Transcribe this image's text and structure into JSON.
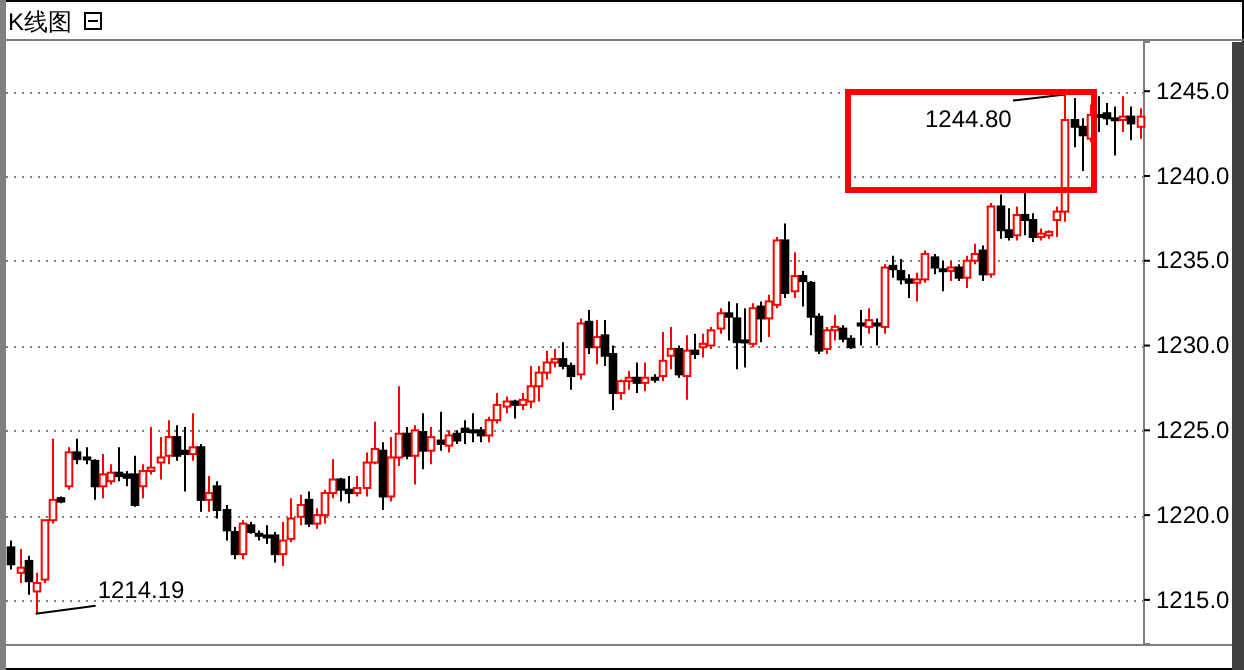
{
  "chart_data": {
    "type": "candlestick",
    "title": "K线图",
    "categories": [
      null,
      null,
      null,
      null,
      null,
      null,
      null,
      null,
      null,
      null,
      null,
      null,
      null,
      null,
      null,
      null,
      null,
      null,
      null,
      null,
      null,
      null,
      null,
      null,
      null,
      null,
      null,
      null,
      null,
      null,
      null,
      null,
      null,
      null,
      null,
      null,
      null,
      null,
      null,
      null,
      null,
      null,
      null,
      null,
      null,
      null,
      null,
      null,
      null,
      null,
      null,
      null,
      null,
      null,
      null,
      null,
      null,
      null,
      null,
      null,
      null,
      null,
      null,
      null,
      null,
      null,
      null,
      null,
      null,
      null,
      null,
      null,
      null,
      null,
      null,
      null,
      null,
      null,
      null,
      null,
      null,
      null,
      null,
      null,
      null,
      null,
      null,
      null,
      null,
      null,
      null,
      null,
      null,
      null,
      null,
      null,
      null,
      null,
      null,
      null,
      null,
      null,
      null,
      null,
      null,
      null,
      null,
      null,
      null,
      null,
      null,
      null,
      null,
      null,
      null,
      null,
      null,
      null,
      null,
      null,
      null,
      null,
      null,
      null,
      null,
      null,
      null,
      null,
      null,
      null,
      null,
      null,
      null,
      null,
      null,
      null,
      null,
      null
    ],
    "ohlc": [
      [
        1218.1,
        1218.5,
        1216.8,
        1217.1
      ],
      [
        1216.6,
        1218,
        1216,
        1216.9
      ],
      [
        1217.3,
        1217.6,
        1215.3,
        1216.1
      ],
      [
        1215.5,
        1216.6,
        1214.19,
        1216.0
      ],
      [
        1216.2,
        1219.7,
        1216.0,
        1219.7
      ],
      [
        1219.7,
        1224.5,
        1219.5,
        1220.9
      ],
      [
        1221,
        1221.1,
        1220.7,
        1220.8
      ],
      [
        1221.7,
        1224,
        1221.5,
        1223.7
      ],
      [
        1223.7,
        1224.5,
        1223,
        1223.3
      ],
      [
        1223.4,
        1224,
        1223,
        1223.3
      ],
      [
        1223.2,
        1223.3,
        1220.9,
        1221.7
      ],
      [
        1221.7,
        1223.6,
        1221,
        1222.4
      ],
      [
        1222,
        1223,
        1221.8,
        1222.5
      ],
      [
        1222.5,
        1224,
        1222,
        1222.3
      ],
      [
        1222.4,
        1222.6,
        1221.7,
        1222.2
      ],
      [
        1222.4,
        1223.5,
        1220.5,
        1220.6
      ],
      [
        1221.7,
        1223,
        1221,
        1222.6
      ],
      [
        1222.6,
        1225.2,
        1222.4,
        1222.8
      ],
      [
        1223.1,
        1224.6,
        1222.1,
        1223.4
      ],
      [
        1223.5,
        1225.6,
        1223,
        1224.6
      ],
      [
        1224.6,
        1225.3,
        1223.2,
        1223.5
      ],
      [
        1223.8,
        1225.2,
        1221.4,
        1223.6
      ],
      [
        1223.6,
        1226,
        1223.2,
        1224
      ],
      [
        1224,
        1224.2,
        1220.2,
        1220.9
      ],
      [
        1220.9,
        1222.3,
        1220.2,
        1221.3
      ],
      [
        1221.7,
        1222,
        1219.8,
        1220.3
      ],
      [
        1220.3,
        1220.6,
        1218.5,
        1219.1
      ],
      [
        1219,
        1219.3,
        1217.4,
        1217.7
      ],
      [
        1217.7,
        1219.7,
        1217.4,
        1219.5
      ],
      [
        1219.4,
        1219.6,
        1218.9,
        1219
      ],
      [
        1218.9,
        1219.1,
        1218.5,
        1218.8
      ],
      [
        1218.8,
        1219.4,
        1218.3,
        1218.7
      ],
      [
        1218.8,
        1219,
        1217.2,
        1217.7
      ],
      [
        1217.7,
        1219.6,
        1217,
        1218.5
      ],
      [
        1218.6,
        1221,
        1218.4,
        1219.8
      ],
      [
        1219.9,
        1221.2,
        1219.4,
        1220.6
      ],
      [
        1220.9,
        1221.4,
        1219.3,
        1219.5
      ],
      [
        1219.5,
        1220.4,
        1219.2,
        1220
      ],
      [
        1220,
        1221.5,
        1219.5,
        1221.3
      ],
      [
        1221.3,
        1223.3,
        1221,
        1222.1
      ],
      [
        1222.1,
        1222.2,
        1220.8,
        1221.5
      ],
      [
        1221.5,
        1222.3,
        1220.7,
        1221.3
      ],
      [
        1221.3,
        1222.3,
        1221.1,
        1221.6
      ],
      [
        1221.6,
        1223.7,
        1221.1,
        1223.1
      ],
      [
        1223.1,
        1225.5,
        1223,
        1223.9
      ],
      [
        1223.8,
        1224.3,
        1220.3,
        1221.1
      ],
      [
        1221.1,
        1224.6,
        1220.8,
        1223.4
      ],
      [
        1223.4,
        1227.6,
        1222.9,
        1224.8
      ],
      [
        1224.8,
        1225.2,
        1223.3,
        1223.5
      ],
      [
        1223.5,
        1225.3,
        1221.8,
        1225
      ],
      [
        1224.9,
        1226,
        1222.7,
        1223.8
      ],
      [
        1223.8,
        1225.2,
        1223,
        1224.6
      ],
      [
        1224.4,
        1226.1,
        1223.8,
        1224.2
      ],
      [
        1224.1,
        1225,
        1223.7,
        1224.7
      ],
      [
        1224.8,
        1225,
        1224.2,
        1224.4
      ],
      [
        1225.1,
        1225.6,
        1224.2,
        1224.9
      ],
      [
        1225,
        1226,
        1224.3,
        1224.9
      ],
      [
        1225,
        1225.2,
        1224.3,
        1224.7
      ],
      [
        1224.7,
        1225.8,
        1224.3,
        1225.6
      ],
      [
        1225.6,
        1227.2,
        1225.4,
        1226.5
      ],
      [
        1226.4,
        1227,
        1226,
        1226.7
      ],
      [
        1226.7,
        1226.8,
        1225.7,
        1226.5
      ],
      [
        1226.5,
        1227.2,
        1226.2,
        1226.8
      ],
      [
        1226.7,
        1228.8,
        1226.3,
        1227.6
      ],
      [
        1227.6,
        1228.8,
        1226.7,
        1228.4
      ],
      [
        1228.4,
        1229.7,
        1228,
        1229
      ],
      [
        1229,
        1229.8,
        1228.7,
        1229.2
      ],
      [
        1229.2,
        1230.2,
        1228.6,
        1228.8
      ],
      [
        1228.8,
        1229,
        1227.4,
        1228.2
      ],
      [
        1228.3,
        1231.6,
        1228,
        1231.3
      ],
      [
        1231.4,
        1232.1,
        1229.5,
        1229.9
      ],
      [
        1229.9,
        1231.5,
        1228.9,
        1230.5
      ],
      [
        1230.6,
        1231.5,
        1228.8,
        1229.4
      ],
      [
        1229.5,
        1230,
        1226.2,
        1227.2
      ],
      [
        1227.2,
        1228,
        1226.8,
        1227.9
      ],
      [
        1227.9,
        1228.5,
        1227.4,
        1228.1
      ],
      [
        1228.1,
        1229,
        1227.2,
        1227.8
      ],
      [
        1227.8,
        1229,
        1227.3,
        1228.1
      ],
      [
        1228.1,
        1228.3,
        1227.8,
        1228
      ],
      [
        1228.2,
        1230.8,
        1227.9,
        1229.1
      ],
      [
        1229.4,
        1231.1,
        1228.6,
        1229.8
      ],
      [
        1229.8,
        1230,
        1228.1,
        1228.3
      ],
      [
        1228.2,
        1230.6,
        1226.8,
        1229.7
      ],
      [
        1229.7,
        1230.7,
        1229.2,
        1229.5
      ],
      [
        1229.9,
        1230.7,
        1229.3,
        1230.1
      ],
      [
        1230,
        1231.1,
        1229.8,
        1230.9
      ],
      [
        1231,
        1232.2,
        1230.7,
        1231.9
      ],
      [
        1231.9,
        1232.6,
        1230.3,
        1231.7
      ],
      [
        1231.6,
        1232.5,
        1228.6,
        1230.2
      ],
      [
        1230.3,
        1232.2,
        1228.7,
        1230.2
      ],
      [
        1230.1,
        1232.5,
        1229.9,
        1232.2
      ],
      [
        1232.3,
        1232.6,
        1230.2,
        1231.6
      ],
      [
        1231.6,
        1233,
        1230.5,
        1232.6
      ],
      [
        1232.4,
        1236.4,
        1232.2,
        1236.2
      ],
      [
        1236.2,
        1237.2,
        1232.8,
        1233.1
      ],
      [
        1233.2,
        1235.5,
        1232.8,
        1234.1
      ],
      [
        1234.1,
        1234.4,
        1232.3,
        1233.8
      ],
      [
        1233.7,
        1233.8,
        1230.6,
        1231.7
      ],
      [
        1231.7,
        1231.9,
        1229.5,
        1229.7
      ],
      [
        1229.8,
        1231.1,
        1229.5,
        1230.9
      ],
      [
        1230.9,
        1231.8,
        1230.3,
        1231.1
      ],
      [
        1231,
        1231.2,
        1230.2,
        1230.4
      ],
      [
        1230.4,
        1230.6,
        1229.8,
        1229.9
      ],
      [
        1231.3,
        1232.1,
        1230,
        1231.2
      ],
      [
        1231.1,
        1232.2,
        1230.7,
        1231.5
      ],
      [
        1231.3,
        1231.6,
        1230,
        1231.2
      ],
      [
        1231.1,
        1234.8,
        1230.7,
        1234.6
      ],
      [
        1234.7,
        1235.3,
        1234,
        1234.5
      ],
      [
        1234.4,
        1235.1,
        1233.6,
        1233.9
      ],
      [
        1233.9,
        1234.2,
        1232.8,
        1233.7
      ],
      [
        1233.7,
        1234.3,
        1232.6,
        1233.9
      ],
      [
        1233.9,
        1235.6,
        1233.7,
        1235.4
      ],
      [
        1235.2,
        1235.4,
        1234.2,
        1234.6
      ],
      [
        1234.5,
        1235,
        1233.2,
        1234.4
      ],
      [
        1234.4,
        1235,
        1233.8,
        1234.6
      ],
      [
        1234.6,
        1234.8,
        1233.8,
        1234
      ],
      [
        1234,
        1235.3,
        1233.4,
        1235
      ],
      [
        1235,
        1236,
        1234.8,
        1235.4
      ],
      [
        1235.6,
        1235.9,
        1233.8,
        1234.2
      ],
      [
        1234.2,
        1238.4,
        1234,
        1238.2
      ],
      [
        1238.2,
        1238.9,
        1236.3,
        1236.8
      ],
      [
        1236.8,
        1238.1,
        1236.2,
        1236.4
      ],
      [
        1236.5,
        1238.2,
        1236.2,
        1237.7
      ],
      [
        1237.7,
        1239.2,
        1236.5,
        1237.4
      ],
      [
        1237.4,
        1237.8,
        1236.1,
        1236.4
      ],
      [
        1236.4,
        1236.9,
        1236.2,
        1236.6
      ],
      [
        1236.5,
        1236.8,
        1236.3,
        1236.7
      ],
      [
        1237.4,
        1238.2,
        1236.4,
        1237.9
      ],
      [
        1237.9,
        1244.8,
        1237.3,
        1243.3
      ],
      [
        1243.3,
        1244.6,
        1241.7,
        1242.9
      ],
      [
        1242.9,
        1243.4,
        1240.3,
        1242.4
      ],
      [
        1242.2,
        1244.2,
        1242,
        1243.6
      ],
      [
        1243.6,
        1244.7,
        1242.6,
        1243.5
      ],
      [
        1243.7,
        1244.3,
        1243,
        1243.4
      ],
      [
        1243.4,
        1244.1,
        1241.2,
        1243.3
      ],
      [
        1243.3,
        1244.7,
        1242.6,
        1243.5
      ],
      [
        1243.5,
        1244.1,
        1242.1,
        1243.1
      ],
      [
        1242.9,
        1244,
        1242.2,
        1243.5
      ]
    ],
    "ylim": [
      1212.4,
      1247.9
    ],
    "yticks": [
      {
        "value": 1215,
        "label": "1215.0"
      },
      {
        "value": 1220,
        "label": "1220.0"
      },
      {
        "value": 1225,
        "label": "1225.0"
      },
      {
        "value": 1230,
        "label": "1230.0"
      },
      {
        "value": 1235,
        "label": "1235.0"
      },
      {
        "value": 1240,
        "label": "1240.0"
      },
      {
        "value": 1245,
        "label": "1245.0"
      }
    ],
    "grid": "y",
    "annotations": [
      "1214.19",
      "1244.80"
    ]
  }
}
